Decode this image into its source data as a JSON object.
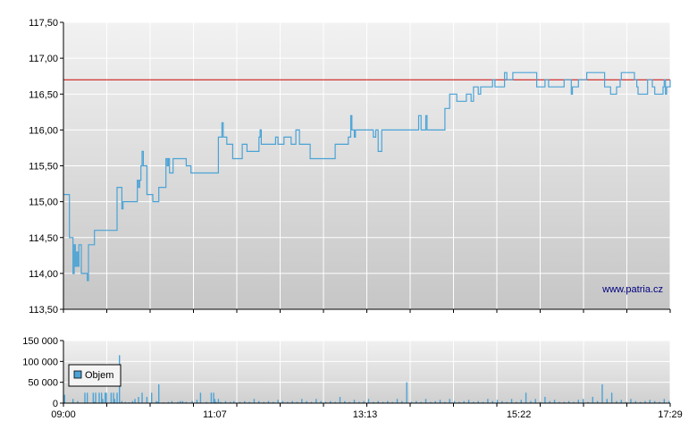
{
  "chart_data": [
    {
      "type": "line",
      "title": "",
      "xlabel": "",
      "ylabel": "",
      "ylim": [
        113.5,
        117.5
      ],
      "yticks": [
        "117,50",
        "117,00",
        "116,50",
        "116,00",
        "115,50",
        "115,00",
        "114,50",
        "114,00",
        "113,50"
      ],
      "ytick_values": [
        117.5,
        117.0,
        116.5,
        116.0,
        115.5,
        115.0,
        114.5,
        114.0,
        113.5
      ],
      "xlim_minutes": [
        540,
        1049
      ],
      "reference_line": {
        "value": 116.7,
        "color": "#cc0000"
      },
      "watermark": "www.patria.cz",
      "grid": true,
      "line_color": "#4aa3d6",
      "series": [
        {
          "name": "",
          "x_minutes": [
            540,
            545,
            546,
            548,
            549,
            550,
            551,
            552,
            553,
            554,
            555,
            556,
            557,
            560,
            561,
            566,
            567,
            568,
            569,
            572,
            574,
            584,
            585,
            588,
            589,
            590,
            594,
            600,
            602,
            603,
            604,
            605,
            606,
            607,
            608,
            610,
            614,
            615,
            620,
            625,
            626,
            627,
            628,
            629,
            630,
            632,
            634,
            642,
            643,
            647,
            649,
            650,
            652,
            654,
            656,
            670,
            673,
            674,
            676,
            677,
            678,
            679,
            680,
            682,
            683,
            690,
            691,
            694,
            702,
            704,
            705,
            706,
            707,
            708,
            712,
            718,
            720,
            725,
            731,
            732,
            735,
            738,
            745,
            747,
            748,
            752,
            753,
            762,
            764,
            765,
            768,
            769,
            770,
            779,
            781,
            782,
            784,
            785,
            787,
            789,
            790,
            798,
            800,
            802,
            804,
            805,
            806,
            807,
            808,
            809,
            811,
            820,
            822,
            823,
            828,
            838,
            840,
            844,
            845,
            856,
            860,
            864,
            865,
            870,
            874,
            878,
            882,
            884,
            888,
            890,
            900,
            902,
            910,
            912,
            917,
            924,
            937,
            940,
            944,
            945,
            947,
            951,
            954,
            960,
            966,
            967,
            972,
            977,
            979,
            980,
            981,
            984,
            989,
            992,
            994,
            999,
            1004,
            1007,
            1008,
            1012,
            1016,
            1019,
            1021,
            1022,
            1030,
            1034,
            1036,
            1043,
            1044,
            1045,
            1046,
            1047,
            1049
          ],
          "y": [
            115.1,
            114.5,
            114.5,
            114.0,
            114.4,
            114.1,
            114.3,
            114.1,
            114.4,
            114.4,
            114.0,
            114.0,
            114.0,
            113.9,
            114.4,
            114.6,
            114.6,
            114.6,
            114.6,
            114.6,
            114.6,
            114.6,
            115.2,
            115.2,
            114.9,
            115.0,
            115.0,
            115.0,
            115.3,
            115.2,
            115.3,
            115.5,
            115.7,
            115.5,
            115.5,
            115.1,
            115.1,
            115.0,
            115.2,
            115.2,
            115.6,
            115.5,
            115.6,
            115.4,
            115.4,
            115.6,
            115.6,
            115.6,
            115.5,
            115.4,
            115.4,
            115.4,
            115.4,
            115.4,
            115.4,
            115.9,
            116.1,
            115.9,
            115.9,
            115.8,
            115.8,
            115.8,
            115.8,
            115.6,
            115.6,
            115.8,
            115.8,
            115.7,
            115.7,
            115.9,
            116.0,
            115.8,
            115.8,
            115.8,
            115.8,
            115.9,
            115.8,
            115.9,
            115.8,
            115.8,
            116.0,
            115.8,
            115.8,
            115.6,
            115.6,
            115.6,
            115.6,
            115.6,
            115.6,
            115.6,
            115.8,
            115.8,
            115.8,
            115.9,
            116.2,
            116.0,
            115.9,
            116.0,
            116.0,
            116.0,
            116.0,
            116.0,
            115.9,
            116.0,
            115.7,
            115.7,
            115.7,
            116.0,
            116.0,
            116.0,
            116.0,
            116.0,
            116.0,
            116.0,
            116.0,
            116.2,
            116.0,
            116.2,
            116.0,
            116.0,
            116.3,
            116.5,
            116.5,
            116.4,
            116.4,
            116.5,
            116.4,
            116.6,
            116.5,
            116.6,
            116.7,
            116.6,
            116.8,
            116.7,
            116.8,
            116.8,
            116.6,
            116.6,
            116.7,
            116.7,
            116.6,
            116.6,
            116.6,
            116.7,
            116.5,
            116.6,
            116.7,
            116.7,
            116.8,
            116.8,
            116.8,
            116.8,
            116.8,
            116.8,
            116.6,
            116.5,
            116.6,
            116.7,
            116.8,
            116.8,
            116.8,
            116.7,
            116.6,
            116.5,
            116.7,
            116.6,
            116.5,
            116.6,
            116.7,
            116.5,
            116.6,
            116.6,
            116.7
          ]
        }
      ]
    },
    {
      "type": "bar",
      "ylim": [
        0,
        150000
      ],
      "yticks": [
        "150 000",
        "100 000",
        "50 000",
        "0"
      ],
      "ytick_values": [
        150000,
        100000,
        50000,
        0
      ],
      "xticks": [
        "09:00",
        "11:07",
        "13:13",
        "15:22",
        "17:29"
      ],
      "xtick_minutes": [
        540,
        667,
        793,
        922,
        1049
      ],
      "legend": {
        "label": "Objem",
        "placement": "top-left"
      },
      "bar_color": "#4aa3d6",
      "series": [
        {
          "name": "Objem",
          "x_minutes": [
            541,
            548,
            552,
            558,
            560,
            565,
            566,
            567,
            570,
            572,
            573,
            575,
            576,
            580,
            582,
            583,
            585,
            587,
            589,
            592,
            595,
            598,
            600,
            603,
            606,
            610,
            614,
            618,
            619,
            620,
            624,
            628,
            631,
            636,
            638,
            640,
            643,
            648,
            652,
            655,
            660,
            664,
            666,
            667,
            668,
            670,
            672,
            676,
            680,
            683,
            688,
            692,
            696,
            700,
            704,
            708,
            712,
            716,
            720,
            724,
            728,
            732,
            736,
            740,
            744,
            748,
            752,
            756,
            760,
            764,
            768,
            772,
            776,
            780,
            784,
            788,
            792,
            796,
            800,
            804,
            808,
            812,
            816,
            820,
            824,
            828,
            832,
            836,
            840,
            844,
            848,
            852,
            856,
            860,
            864,
            868,
            872,
            876,
            880,
            884,
            888,
            892,
            896,
            900,
            904,
            908,
            912,
            916,
            920,
            924,
            928,
            932,
            936,
            940,
            944,
            948,
            952,
            956,
            960,
            964,
            968,
            972,
            976,
            980,
            984,
            988,
            992,
            996,
            1000,
            1004,
            1008,
            1012,
            1016,
            1020,
            1024,
            1028,
            1032,
            1036,
            1040,
            1044,
            1048
          ],
          "values": [
            20000,
            10000,
            5000,
            25000,
            25000,
            25000,
            3000,
            25000,
            25000,
            25000,
            10000,
            25000,
            25000,
            25000,
            25000,
            10000,
            25000,
            115000,
            5000,
            3000,
            2000,
            5000,
            10000,
            15000,
            25000,
            15000,
            25000,
            5000,
            3000,
            45000,
            2000,
            3000,
            5000,
            3000,
            5000,
            5000,
            3000,
            5000,
            8000,
            25000,
            3000,
            25000,
            25000,
            10000,
            3000,
            10000,
            3000,
            5000,
            3000,
            5000,
            3000,
            5000,
            3000,
            10000,
            5000,
            3000,
            5000,
            3000,
            8000,
            5000,
            3000,
            5000,
            3000,
            10000,
            5000,
            3000,
            10000,
            5000,
            3000,
            5000,
            3000,
            15000,
            5000,
            3000,
            8000,
            3000,
            5000,
            10000,
            3000,
            5000,
            3000,
            5000,
            3000,
            10000,
            5000,
            50000,
            3000,
            5000,
            3000,
            10000,
            3000,
            5000,
            8000,
            3000,
            10000,
            5000,
            3000,
            5000,
            8000,
            3000,
            5000,
            3000,
            10000,
            5000,
            8000,
            5000,
            3000,
            10000,
            3000,
            8000,
            25000,
            5000,
            10000,
            3000,
            15000,
            5000,
            8000,
            3000,
            3000,
            5000,
            3000,
            8000,
            10000,
            3000,
            15000,
            5000,
            45000,
            10000,
            25000,
            5000,
            8000,
            3000,
            10000,
            5000,
            3000,
            5000,
            8000,
            5000,
            3000,
            10000,
            5000
          ]
        }
      ]
    }
  ]
}
